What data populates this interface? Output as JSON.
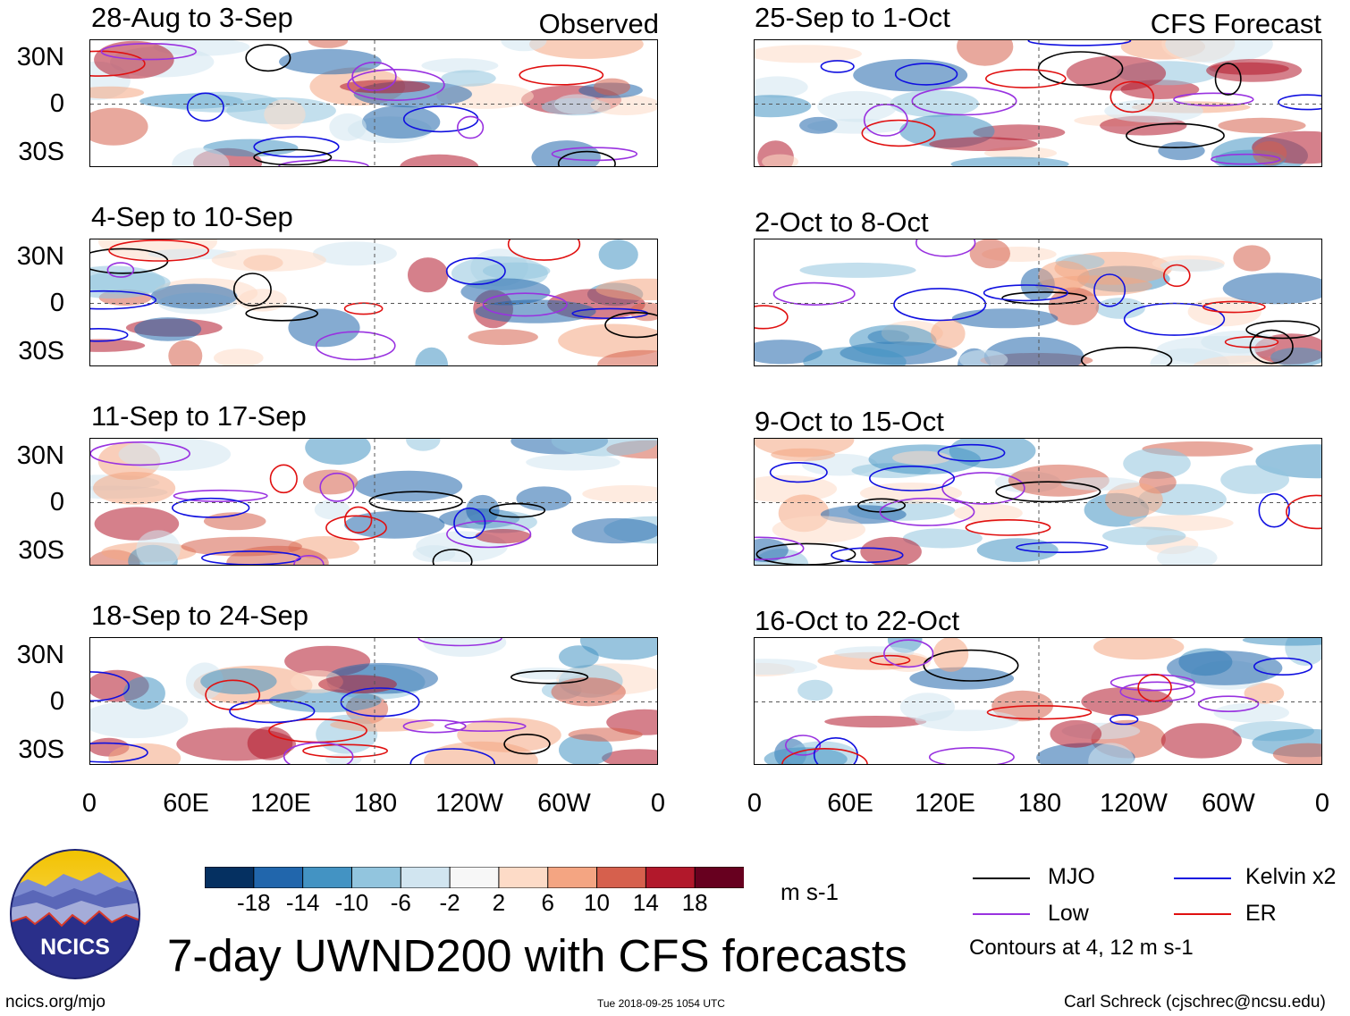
{
  "observed_tag": "Observed",
  "forecast_tag": "CFS Forecast",
  "lat_labels": [
    "30N",
    "0",
    "30S"
  ],
  "lon_labels": [
    "0",
    "60E",
    "120E",
    "180",
    "120W",
    "60W",
    "0"
  ],
  "panels": [
    {
      "title": "28-Aug to 3-Sep"
    },
    {
      "title": "4-Sep to 10-Sep"
    },
    {
      "title": "11-Sep to 17-Sep"
    },
    {
      "title": "18-Sep to 24-Sep"
    },
    {
      "title": "25-Sep to 1-Oct"
    },
    {
      "title": "2-Oct to 8-Oct"
    },
    {
      "title": "9-Oct to 15-Oct"
    },
    {
      "title": "16-Oct to 22-Oct"
    }
  ],
  "colorbar": {
    "labels": [
      "-18",
      "-14",
      "-10",
      "-6",
      "-2",
      "2",
      "6",
      "10",
      "14",
      "18"
    ],
    "colors": [
      "#053061",
      "#2166ac",
      "#4393c3",
      "#92c5de",
      "#d1e5f0",
      "#f7f7f7",
      "#fddbc7",
      "#f4a582",
      "#d6604d",
      "#b2182b",
      "#67001f"
    ],
    "units": "m s-1"
  },
  "legend": {
    "mjo": "MJO",
    "kelvin": "Kelvin x2",
    "low": "Low",
    "er": "ER",
    "contours_note": "Contours at 4, 12 m s-1",
    "colors": {
      "mjo": "#000000",
      "kelvin": "#1010e0",
      "low": "#9932e0",
      "er": "#e01010"
    }
  },
  "title": "7-day UWND200 with CFS forecasts",
  "logo_text": "NCICS",
  "footer": {
    "url": "ncics.org/mjo",
    "timestamp": "Tue 2018-09-25 1054 UTC",
    "author": "Carl Schreck (cjschrec@ncsu.edu)"
  }
}
